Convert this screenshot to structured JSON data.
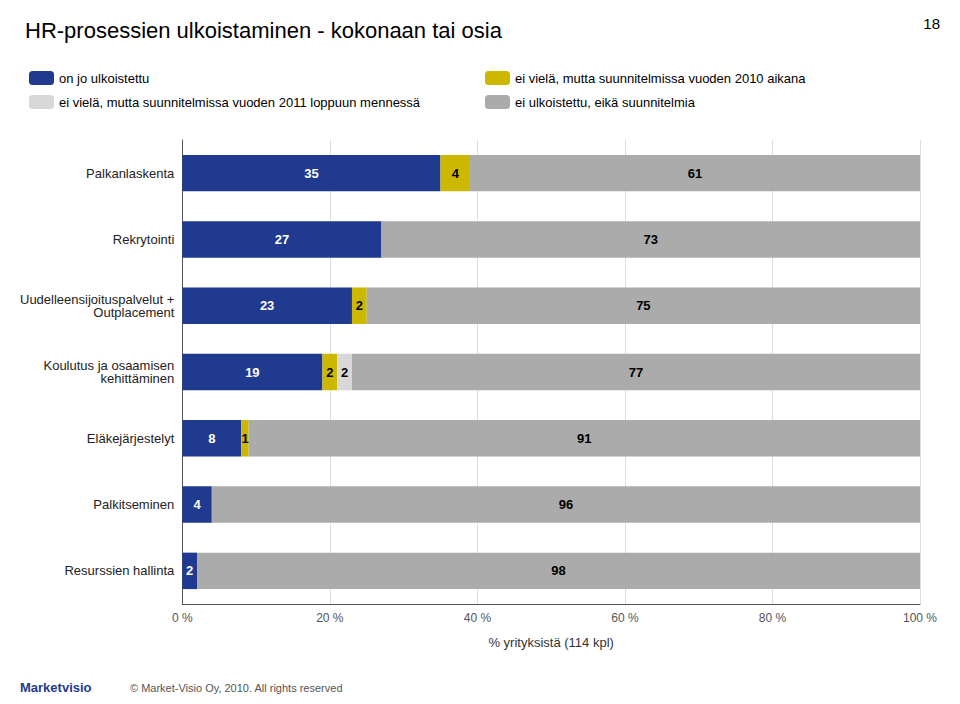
{
  "chart_data": {
    "type": "bar",
    "orientation": "horizontal",
    "stacked": true,
    "title": "HR-prosessien ulkoistaminen - kokonaan tai osia",
    "categories": [
      "Palkanlaskenta",
      "Rekrytointi",
      "Uudelleensijoituspalvelut +\nOutplacement",
      "Koulutus ja osaamisen\nkehittäminen",
      "Eläkejärjestelyt",
      "Palkitseminen",
      "Resurssien hallinta"
    ],
    "series": [
      {
        "name": "on jo ulkoistettu",
        "color": "#1F3A8F",
        "values": [
          35,
          27,
          23,
          19,
          8,
          4,
          2
        ]
      },
      {
        "name": "ei vielä, mutta suunnitelmissa vuoden 2010 aikana",
        "color": "#CDB800",
        "values": [
          4,
          0,
          2,
          2,
          1,
          0,
          0
        ]
      },
      {
        "name": "ei vielä, mutta suunnitelmissa vuoden 2011 loppuun mennessä",
        "color": "#D8D8D8",
        "values": [
          0,
          0,
          0,
          2,
          0,
          0,
          0
        ]
      },
      {
        "name": "ei ulkoistettu, eikä suunnitelmia",
        "color": "#ABABAB",
        "values": [
          61,
          73,
          75,
          77,
          91,
          96,
          98
        ]
      }
    ],
    "xlabel": "% yrityksistä (114 kpl)",
    "xlim": [
      0,
      100
    ],
    "xticks": [
      {
        "value": 0,
        "label": "0 %"
      },
      {
        "value": 20,
        "label": "20 %"
      },
      {
        "value": 40,
        "label": "40 %"
      },
      {
        "value": 60,
        "label": "60 %"
      },
      {
        "value": 80,
        "label": "80 %"
      },
      {
        "value": 100,
        "label": "100 %"
      }
    ],
    "grid": true,
    "legend": "top",
    "data_labels": true,
    "annotations": [
      "18",
      "Marketvisio",
      "© Market-Visio Oy, 2010. All rights reserved"
    ]
  }
}
